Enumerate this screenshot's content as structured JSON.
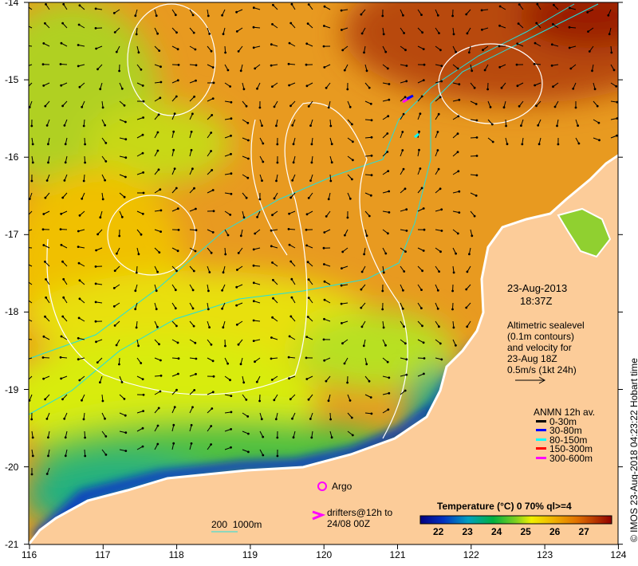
{
  "map": {
    "date": "23-Aug-2013",
    "time": "18:37Z",
    "altimetry_lines": [
      "Altimetric sealevel",
      "(0.1m contours)",
      "and velocity for",
      "23-Aug 18Z",
      "0.5m/s (1kt 24h)"
    ],
    "anmn_title": "ANMN 12h av.",
    "anmn_legend": [
      {
        "label": "0-30m",
        "color": "#000000"
      },
      {
        "label": "30-80m",
        "color": "#0000ff"
      },
      {
        "label": "80-150m",
        "color": "#00ffff"
      },
      {
        "label": "150-300m",
        "color": "#ff0000"
      },
      {
        "label": "300-600m",
        "color": "#ff00ff"
      }
    ],
    "argo_label": "Argo",
    "drifters_lines": [
      "drifters@12h to",
      "24/08 00Z"
    ],
    "bathy_label": "200  1000m",
    "colorbar_title": "Temperature (°C) 0 70% ql>=4",
    "colorbar_ticks": [
      "22",
      "23",
      "24",
      "25",
      "26",
      "27"
    ],
    "credit": "© IMOS 23-Aug-2018 04:23:22 Hobart time",
    "lon_ticks": [
      "116",
      "117",
      "118",
      "119",
      "120",
      "121",
      "122",
      "123",
      "124"
    ],
    "lat_ticks": [
      "-14",
      "-15",
      "-16",
      "-17",
      "-18",
      "-19",
      "-20",
      "-21"
    ],
    "colors": {
      "land": "#fccc99",
      "argo": "#ff00ff"
    }
  }
}
